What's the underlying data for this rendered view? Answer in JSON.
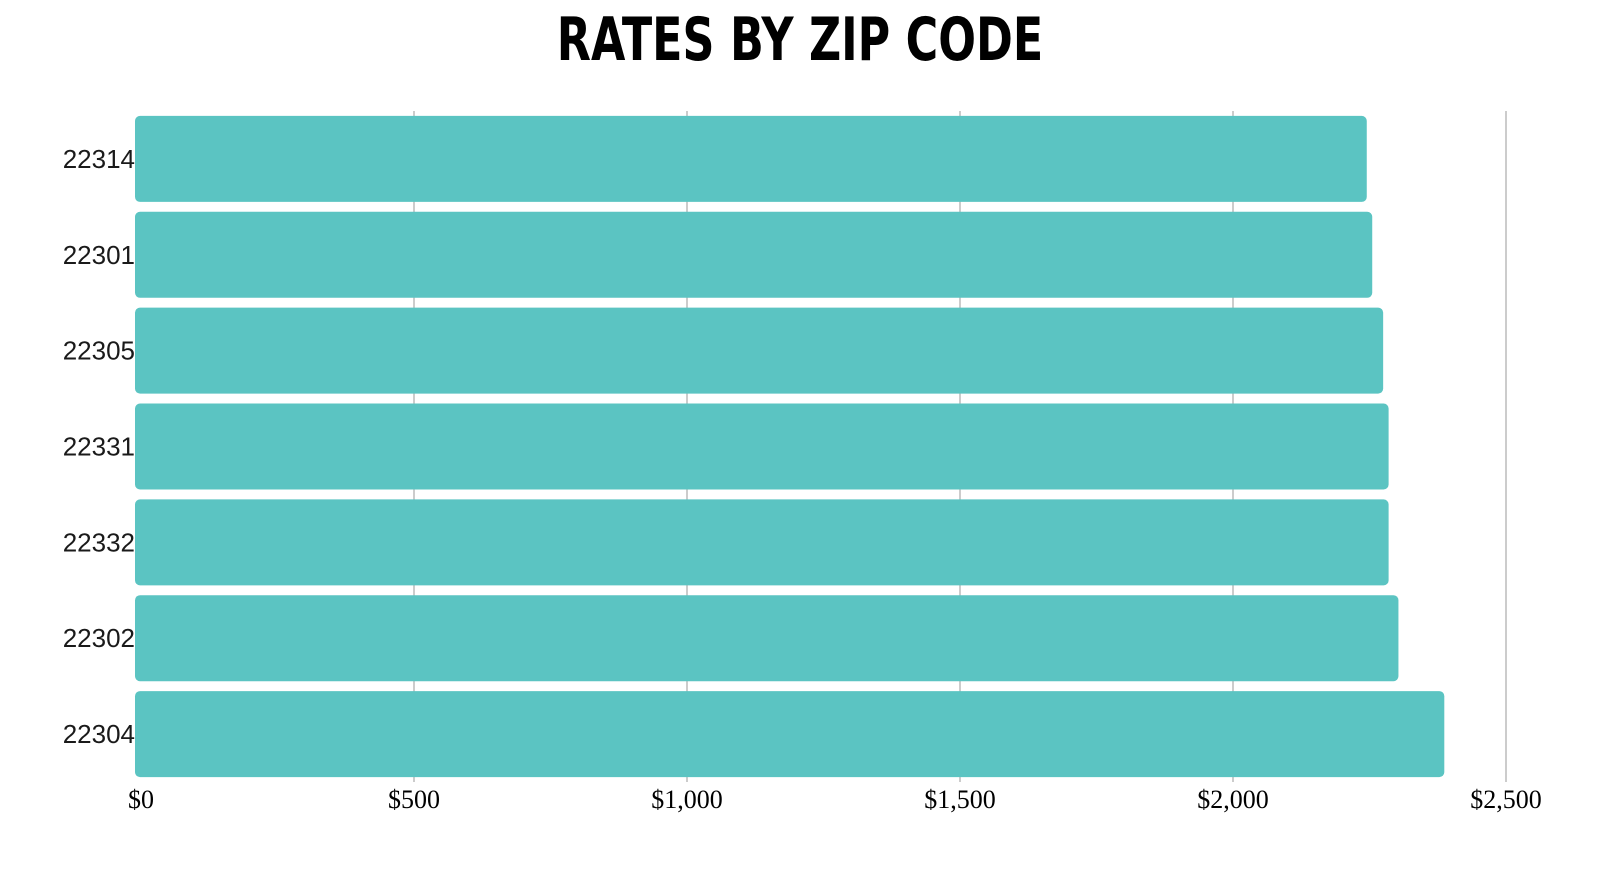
{
  "chart_data": {
    "type": "bar",
    "orientation": "horizontal",
    "title": "RATES BY ZIP CODE",
    "categories": [
      "22314",
      "22301",
      "22305",
      "22331",
      "22332",
      "22302",
      "22304"
    ],
    "values": [
      2245,
      2255,
      2275,
      2285,
      2285,
      2303,
      2387
    ],
    "xlim": [
      0,
      2500
    ],
    "xticks": [
      0,
      500,
      1000,
      1500,
      2000,
      2500
    ],
    "xtick_labels": [
      "$0",
      "$500",
      "$1,000",
      "$1,500",
      "$2,000",
      "$2,500"
    ],
    "xlabel": "",
    "ylabel": "",
    "grid": "vertical",
    "legend": "none",
    "bar_color": "#5bc4c2",
    "grid_color": "#cccccc"
  }
}
